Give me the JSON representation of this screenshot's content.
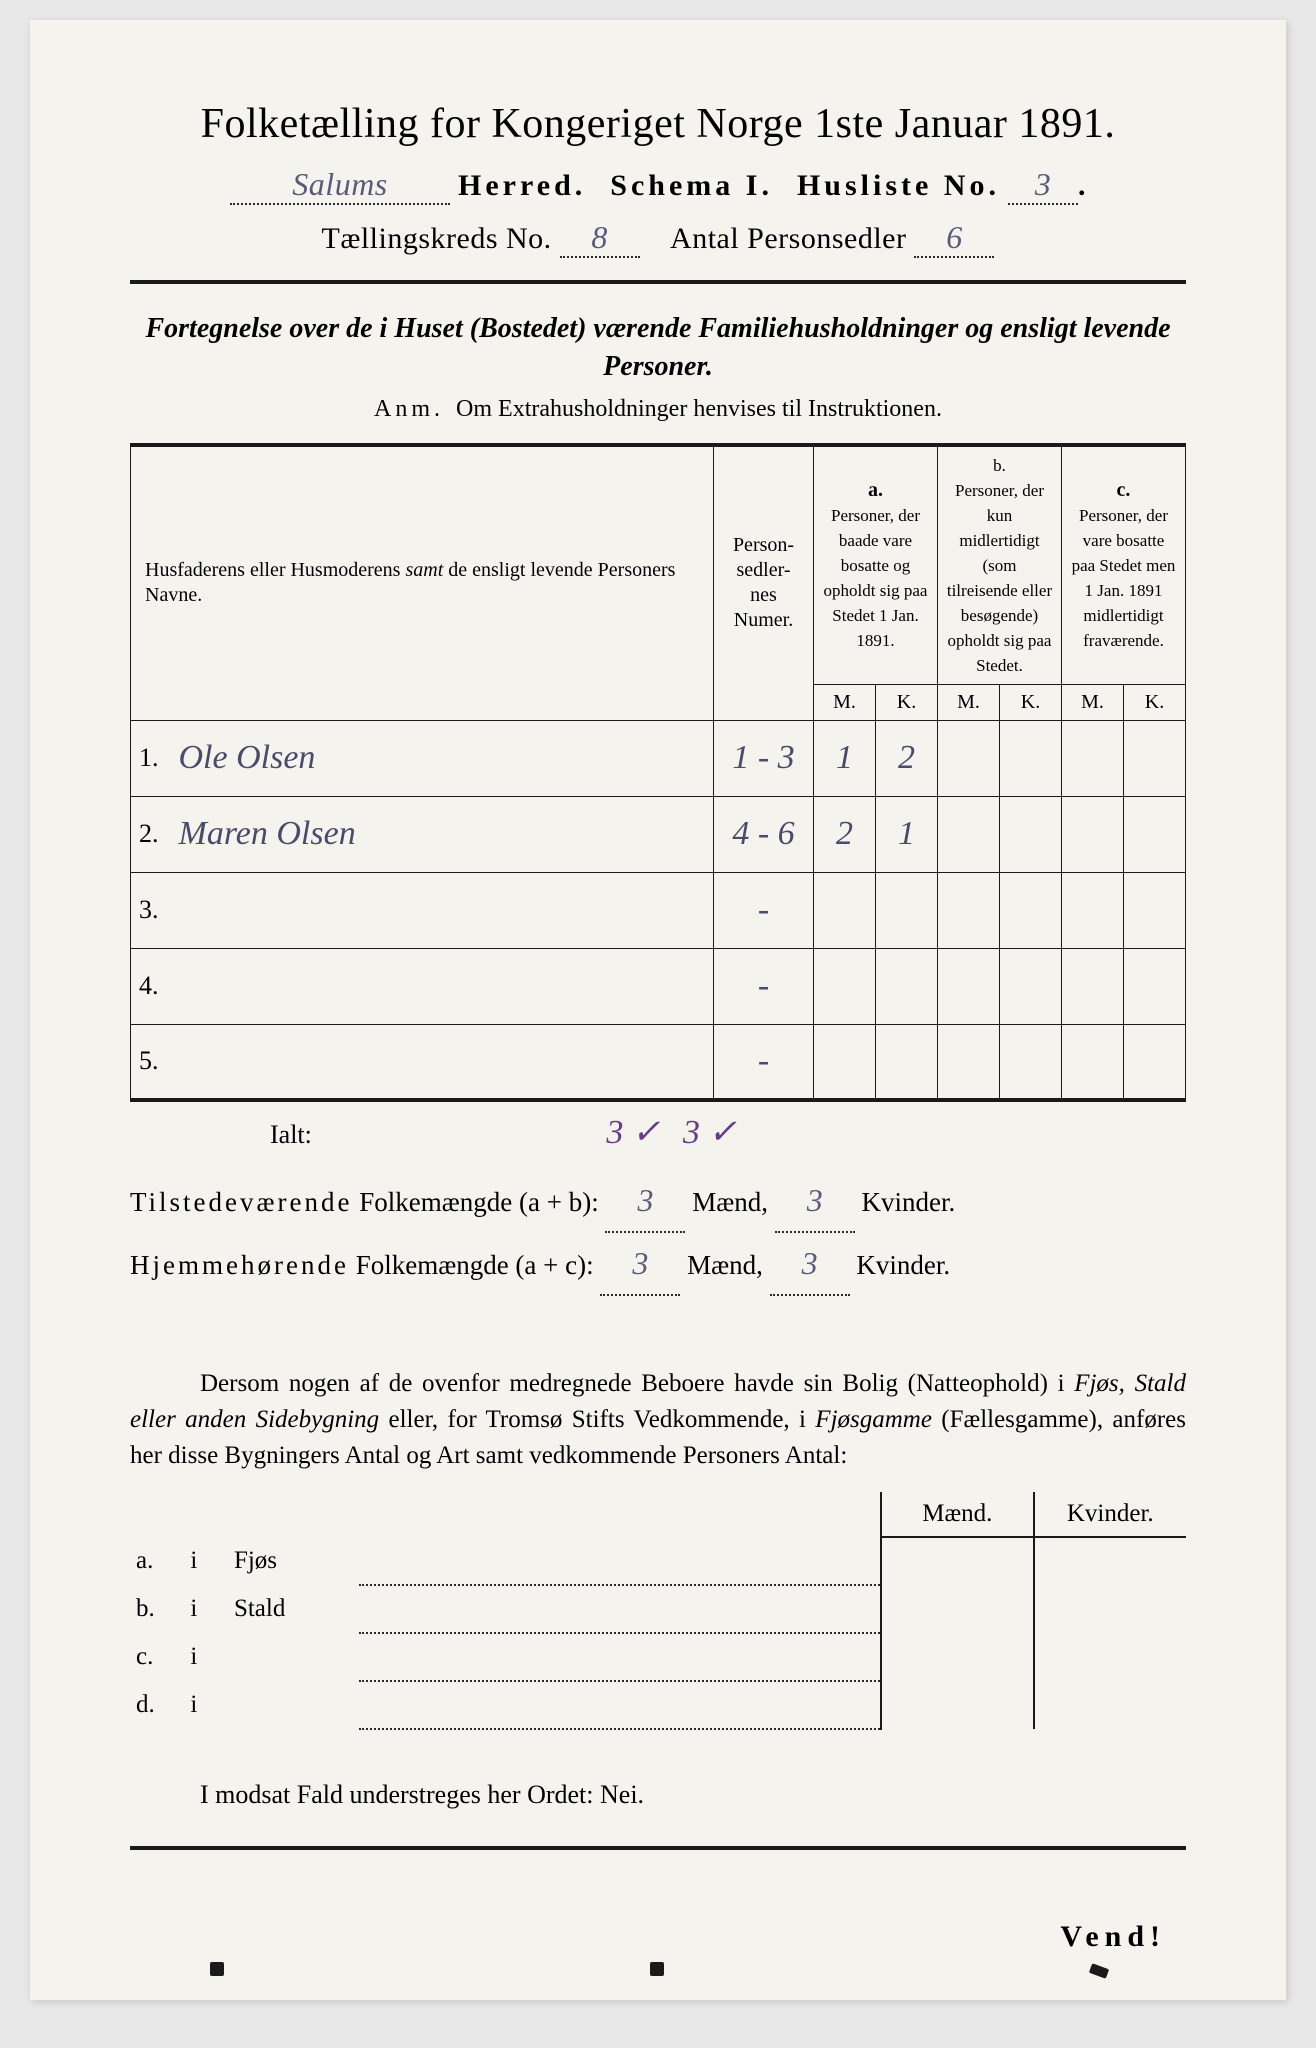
{
  "title": "Folketælling for Kongeriget Norge 1ste Januar 1891.",
  "header": {
    "herred_value": "Salums",
    "herred_label": "Herred.",
    "schema_label": "Schema I.",
    "husliste_label": "Husliste No.",
    "husliste_value": "3",
    "kreds_label": "Tællingskreds No.",
    "kreds_value": "8",
    "antal_label": "Antal Personsedler",
    "antal_value": "6"
  },
  "subtitle": "Fortegnelse over de i Huset (Bostedet) værende Familiehusholdninger og ensligt levende Personer.",
  "anm_label": "Anm.",
  "anm_text": "Om Extrahusholdninger henvises til Instruktionen.",
  "columns": {
    "c1": "Husfaderens eller Husmoderens samt de ensligt levende Personers Navne.",
    "c2": "Person-\nsedler-\nnes\nNumer.",
    "a_label": "a.",
    "a_text": "Personer, der baade vare bosatte og opholdt sig paa Stedet 1 Jan. 1891.",
    "b_label": "b.",
    "b_text": "Personer, der kun midlertidigt (som tilreisende eller besøgende) opholdt sig paa Stedet.",
    "c_label": "c.",
    "c_text": "Personer, der vare bosatte paa Stedet men 1 Jan. 1891 midlertidigt fraværende.",
    "M": "M.",
    "K": "K."
  },
  "rows": [
    {
      "n": "1.",
      "name": "Ole Olsen",
      "num": "1 - 3",
      "aM": "1",
      "aK": "2",
      "bM": "",
      "bK": "",
      "cM": "",
      "cK": ""
    },
    {
      "n": "2.",
      "name": "Maren Olsen",
      "num": "4 - 6",
      "aM": "2",
      "aK": "1",
      "bM": "",
      "bK": "",
      "cM": "",
      "cK": ""
    },
    {
      "n": "3.",
      "name": "",
      "num": "-",
      "aM": "",
      "aK": "",
      "bM": "",
      "bK": "",
      "cM": "",
      "cK": ""
    },
    {
      "n": "4.",
      "name": "",
      "num": "-",
      "aM": "",
      "aK": "",
      "bM": "",
      "bK": "",
      "cM": "",
      "cK": ""
    },
    {
      "n": "5.",
      "name": "",
      "num": "-",
      "aM": "",
      "aK": "",
      "bM": "",
      "bK": "",
      "cM": "",
      "cK": ""
    }
  ],
  "ialt": {
    "label": "Ialt:",
    "m": "3 ✓",
    "k": "3 ✓"
  },
  "summary": {
    "line1_a": "Tilstedeværende",
    "line1_b": "Folkemængde (a + b):",
    "line1_m": "3",
    "line1_mu": "Mænd,",
    "line1_k": "3",
    "line1_ku": "Kvinder.",
    "line2_a": "Hjemmehørende",
    "line2_b": "Folkemængde (a + c):",
    "line2_m": "3",
    "line2_mu": "Mænd,",
    "line2_k": "3",
    "line2_ku": "Kvinder."
  },
  "para": "Dersom nogen af de ovenfor medregnede Beboere havde sin Bolig (Natteophold) i Fjøs, Stald eller anden Sidebygning eller, for Tromsø Stifts Vedkommende, i Fjøsgamme (Fællesgamme), anføres her disse Bygningers Antal og Art samt vedkommende Personers Antal:",
  "bldg": {
    "m": "Mænd.",
    "k": "Kvinder.",
    "rows": [
      {
        "lab": "a.",
        "i": "i",
        "txt": "Fjøs"
      },
      {
        "lab": "b.",
        "i": "i",
        "txt": "Stald"
      },
      {
        "lab": "c.",
        "i": "i",
        "txt": ""
      },
      {
        "lab": "d.",
        "i": "i",
        "txt": ""
      }
    ]
  },
  "nei": "I modsat Fald understreges her Ordet: Nei.",
  "vend": "Vend!"
}
